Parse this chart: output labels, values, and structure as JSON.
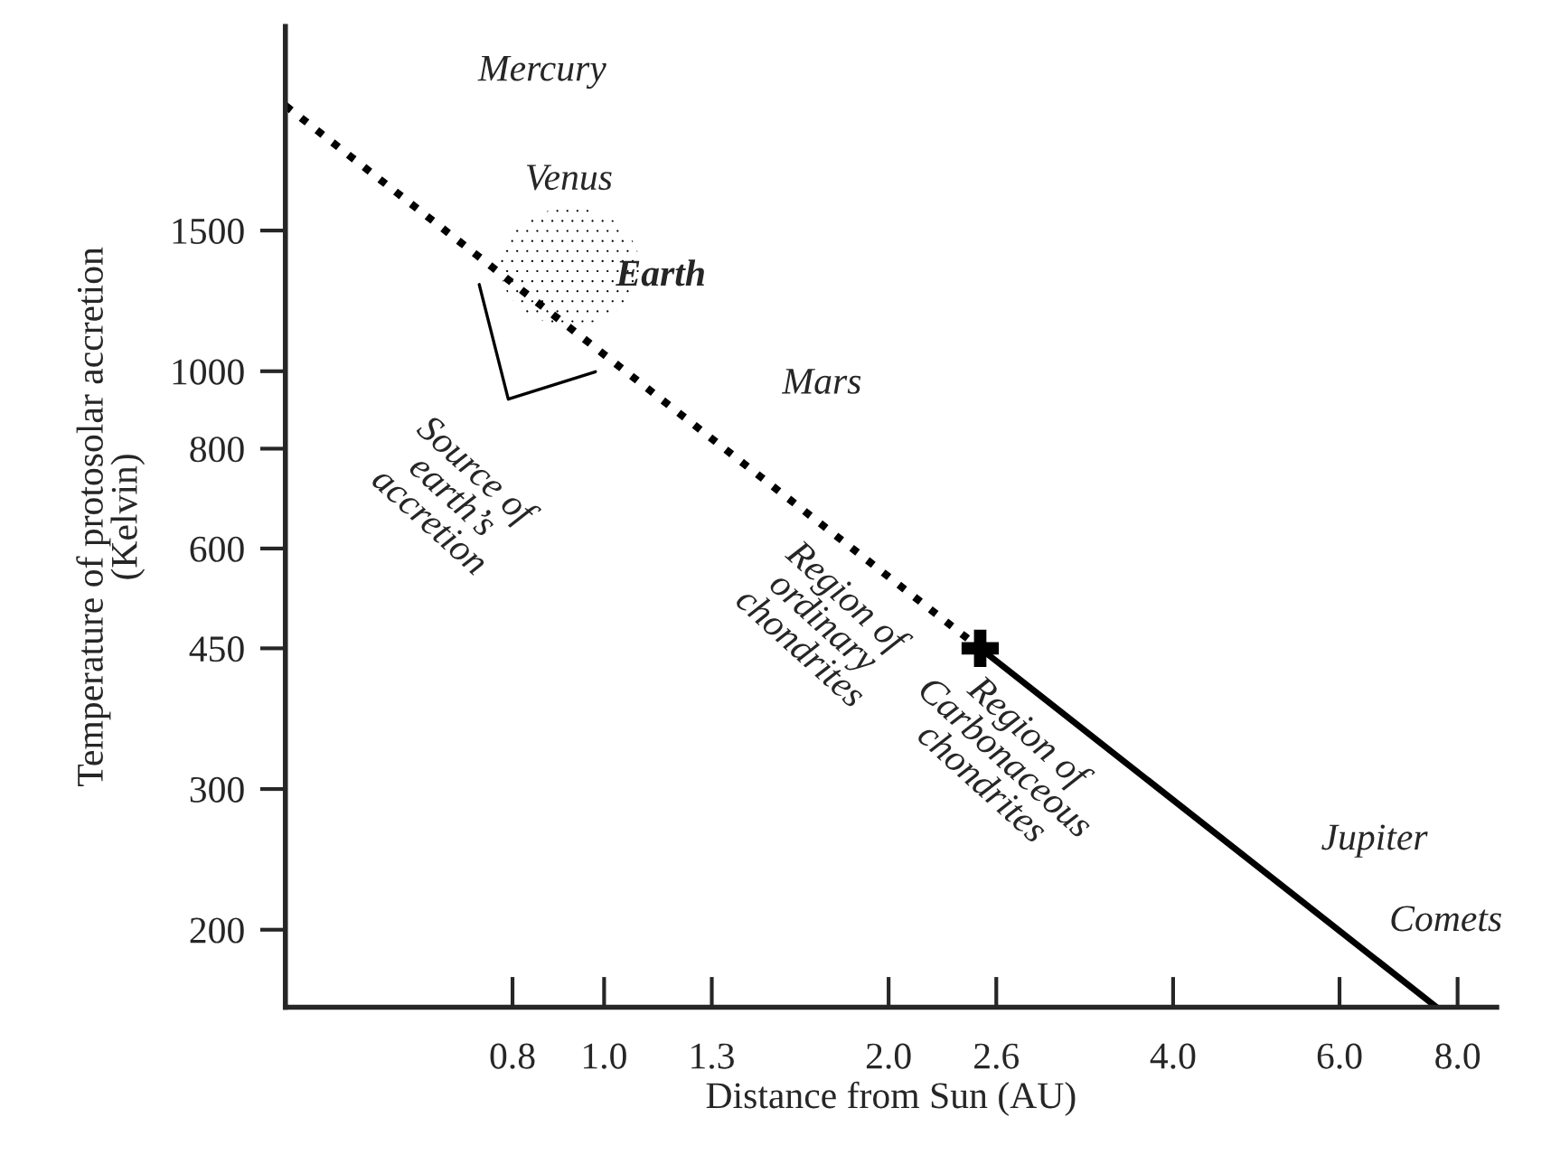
{
  "chart_data": {
    "type": "line",
    "xlabel": "Distance from Sun (AU)",
    "ylabel": "Temperature of protosolar accretion\n(Kelvin)",
    "log": "xy",
    "grid": false,
    "legend": false,
    "xlim": [
      0.46,
      8.8
    ],
    "ylim": [
      160,
      2700
    ],
    "xticks": [
      {
        "value": 0.8,
        "label": "0.8"
      },
      {
        "value": 1.0,
        "label": "1.0"
      },
      {
        "value": 1.3,
        "label": "1.3"
      },
      {
        "value": 2.0,
        "label": "2.0"
      },
      {
        "value": 2.6,
        "label": "2.6"
      },
      {
        "value": 4.0,
        "label": "4.0"
      },
      {
        "value": 6.0,
        "label": "6.0"
      },
      {
        "value": 8.0,
        "label": "8.0"
      }
    ],
    "yticks": [
      200,
      300,
      450,
      600,
      800,
      1000,
      1500
    ],
    "series": [
      {
        "x": [
          0.46,
          2.5
        ],
        "values": [
          2150,
          450
        ],
        "color": "#000000",
        "line_style": "dotted",
        "marker": "none"
      },
      {
        "x": [
          2.5,
          7.6
        ],
        "values": [
          450,
          160
        ],
        "color": "#000000",
        "line_style": "solid",
        "marker": "none"
      },
      {
        "type": "scatter",
        "x": [
          2.5
        ],
        "values": [
          450
        ],
        "color": "#000000",
        "marker": "cross"
      }
    ],
    "annotations": [
      "Mercury",
      "Venus",
      "Earth",
      "Mars",
      "Source of\nearth’s\naccretion",
      "Region of\nordinary\nchondrites",
      "Region of\nCarbonaceous\nchondrites",
      "Jupiter",
      "Comets"
    ]
  }
}
